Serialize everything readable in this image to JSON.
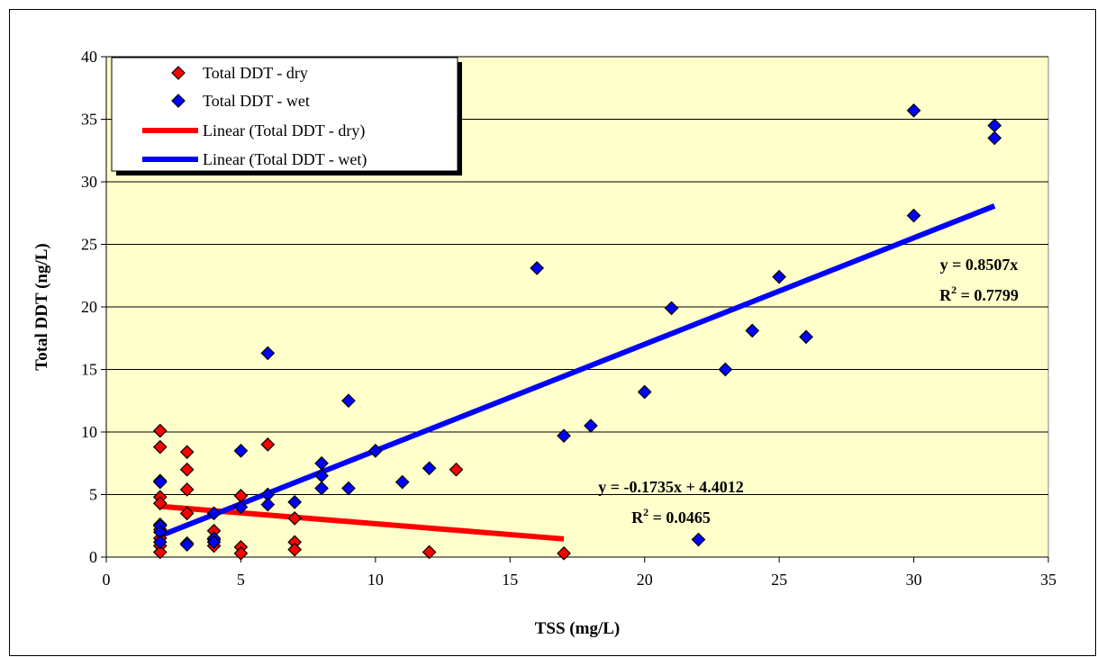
{
  "chart_data": {
    "type": "scatter",
    "title": "",
    "xlabel": "TSS (mg/L)",
    "ylabel": "Total DDT (ng/L)",
    "xlim": [
      0,
      35
    ],
    "ylim": [
      0,
      40
    ],
    "xticks": [
      0,
      5,
      10,
      15,
      20,
      25,
      30,
      35
    ],
    "yticks": [
      0,
      5,
      10,
      15,
      20,
      25,
      30,
      35,
      40
    ],
    "grid": "horizontal",
    "plot_background": "#ffffcc",
    "legend_position": "top-left",
    "series": [
      {
        "name": "Total DDT - dry",
        "marker": "diamond",
        "color": "#ff0000",
        "points": [
          [
            2,
            10.1
          ],
          [
            2,
            8.8
          ],
          [
            2,
            6.1
          ],
          [
            2,
            4.8
          ],
          [
            2,
            4.3
          ],
          [
            2,
            2.6
          ],
          [
            2,
            2.2
          ],
          [
            2,
            1.5
          ],
          [
            2,
            0.9
          ],
          [
            2,
            0.4
          ],
          [
            3,
            8.4
          ],
          [
            3,
            7.0
          ],
          [
            3,
            5.4
          ],
          [
            3,
            3.5
          ],
          [
            3,
            1.1
          ],
          [
            4,
            2.1
          ],
          [
            4,
            1.4
          ],
          [
            4,
            0.9
          ],
          [
            5,
            4.9
          ],
          [
            5,
            0.8
          ],
          [
            5,
            0.3
          ],
          [
            6,
            9.0
          ],
          [
            7,
            3.1
          ],
          [
            7,
            1.2
          ],
          [
            7,
            0.6
          ],
          [
            12,
            0.4
          ],
          [
            13,
            7.0
          ],
          [
            17,
            0.3
          ]
        ]
      },
      {
        "name": "Total DDT - wet",
        "marker": "diamond",
        "color": "#0000ff",
        "points": [
          [
            2,
            6.0
          ],
          [
            2,
            2.5
          ],
          [
            2,
            2.0
          ],
          [
            2,
            1.2
          ],
          [
            3,
            1.0
          ],
          [
            4,
            3.5
          ],
          [
            4,
            1.5
          ],
          [
            4,
            1.2
          ],
          [
            5,
            8.5
          ],
          [
            5,
            4.0
          ],
          [
            6,
            16.3
          ],
          [
            6,
            5.0
          ],
          [
            6,
            4.2
          ],
          [
            7,
            4.4
          ],
          [
            8,
            7.5
          ],
          [
            8,
            6.5
          ],
          [
            8,
            5.5
          ],
          [
            9,
            12.5
          ],
          [
            9,
            5.5
          ],
          [
            10,
            8.5
          ],
          [
            11,
            6.0
          ],
          [
            12,
            7.1
          ],
          [
            16,
            23.1
          ],
          [
            17,
            9.7
          ],
          [
            18,
            10.5
          ],
          [
            20,
            13.2
          ],
          [
            21,
            19.9
          ],
          [
            22,
            1.4
          ],
          [
            23,
            15.0
          ],
          [
            24,
            18.1
          ],
          [
            25,
            22.4
          ],
          [
            26,
            17.6
          ],
          [
            30,
            35.7
          ],
          [
            30,
            27.3
          ],
          [
            33,
            34.5
          ],
          [
            33,
            33.5
          ]
        ]
      }
    ],
    "trendlines": [
      {
        "name": "Linear (Total DDT - dry)",
        "color": "#ff0000",
        "slope": -0.1735,
        "intercept": 4.4012,
        "x_range": [
          2,
          17
        ],
        "equation": "y = -0.1735x + 4.4012",
        "r2_value": "0.0465"
      },
      {
        "name": "Linear (Total DDT - wet)",
        "color": "#0000ff",
        "slope": 0.8507,
        "intercept": 0,
        "x_range": [
          2,
          33
        ],
        "equation": "y = 0.8507x",
        "r2_value": "0.7799"
      }
    ],
    "r2_prefix": "R",
    "r2_exponent": "2",
    "r2_infix": " = "
  }
}
